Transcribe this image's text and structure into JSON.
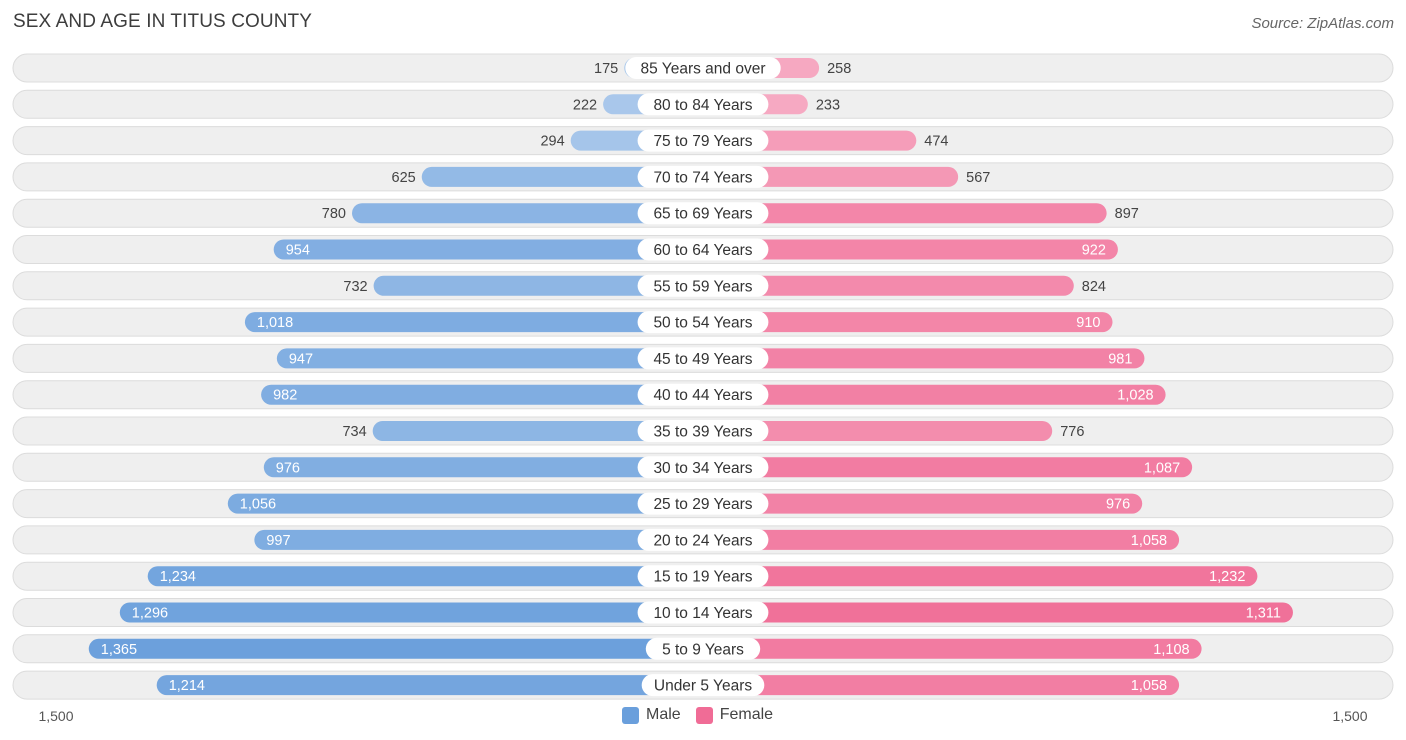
{
  "title": "SEX AND AGE IN TITUS COUNTY",
  "source": "Source: ZipAtlas.com",
  "chart_data": {
    "type": "bar",
    "orientation": "horizontal-diverging",
    "categories": [
      "85 Years and over",
      "80 to 84 Years",
      "75 to 79 Years",
      "70 to 74 Years",
      "65 to 69 Years",
      "60 to 64 Years",
      "55 to 59 Years",
      "50 to 54 Years",
      "45 to 49 Years",
      "40 to 44 Years",
      "35 to 39 Years",
      "30 to 34 Years",
      "25 to 29 Years",
      "20 to 24 Years",
      "15 to 19 Years",
      "10 to 14 Years",
      "5 to 9 Years",
      "Under 5 Years"
    ],
    "series": [
      {
        "name": "Male",
        "color": "#6a9fdc",
        "values": [
          175,
          222,
          294,
          625,
          780,
          954,
          732,
          1018,
          947,
          982,
          734,
          976,
          1056,
          997,
          1234,
          1296,
          1365,
          1214
        ],
        "labels": [
          "175",
          "222",
          "294",
          "625",
          "780",
          "954",
          "732",
          "1,018",
          "947",
          "982",
          "734",
          "976",
          "1,056",
          "997",
          "1,234",
          "1,296",
          "1,365",
          "1,214"
        ]
      },
      {
        "name": "Female",
        "color": "#f06c96",
        "values": [
          258,
          233,
          474,
          567,
          897,
          922,
          824,
          910,
          981,
          1028,
          776,
          1087,
          976,
          1058,
          1232,
          1311,
          1108,
          1058
        ],
        "labels": [
          "258",
          "233",
          "474",
          "567",
          "897",
          "922",
          "824",
          "910",
          "981",
          "1,028",
          "776",
          "1,087",
          "976",
          "1,058",
          "1,232",
          "1,311",
          "1,108",
          "1,058"
        ]
      }
    ],
    "xlim": [
      -1500,
      1500
    ],
    "axis_labels": {
      "left": "1,500",
      "right": "1,500"
    },
    "legend_position": "bottom-center"
  }
}
